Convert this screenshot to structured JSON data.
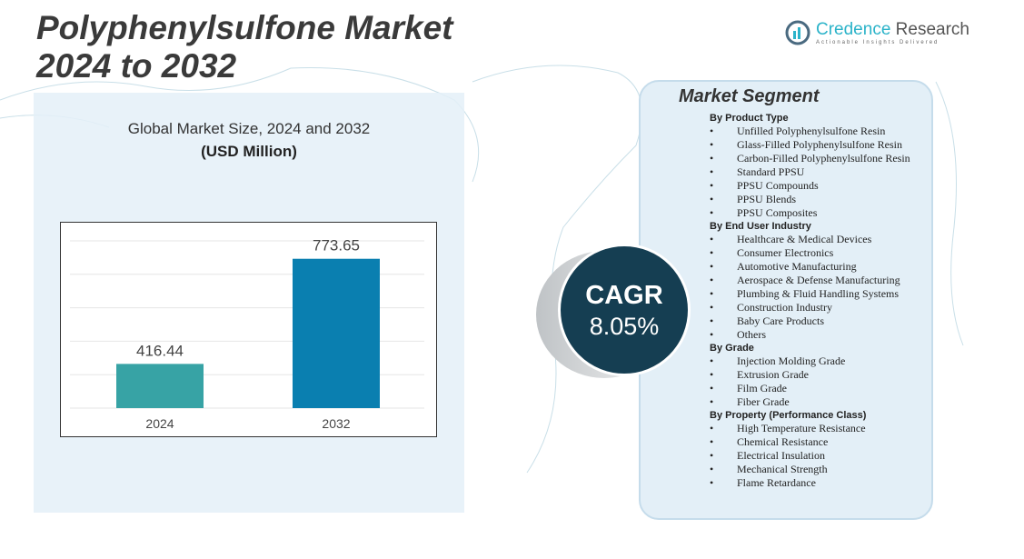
{
  "title_line1": "Polyphenylsulfone Market",
  "title_line2": "2024 to 2032",
  "logo": {
    "name": "Credence",
    "name2": "Research",
    "tagline": "Actionable Insights Delivered"
  },
  "chart_data": {
    "type": "bar",
    "title": "Global Market Size, 2024 and 2032",
    "unit": "(USD Million)",
    "categories": [
      "2024",
      "2032"
    ],
    "values": [
      416.44,
      773.65
    ],
    "data_labels": [
      "416.44",
      "773.65"
    ],
    "colors": [
      "#37a3a5",
      "#0a7fb0"
    ],
    "grid": true
  },
  "cagr": {
    "label": "CAGR",
    "value": "8.05%"
  },
  "segment": {
    "heading": "Market Segment",
    "groups": [
      {
        "title": "By Product Type",
        "items": [
          "Unfilled Polyphenylsulfone Resin",
          "Glass-Filled Polyphenylsulfone Resin",
          "Carbon-Filled Polyphenylsulfone Resin",
          "Standard PPSU",
          "PPSU Compounds",
          "PPSU Blends",
          "PPSU Composites"
        ]
      },
      {
        "title": "By End User Industry",
        "items": [
          "Healthcare & Medical Devices",
          "Consumer Electronics",
          "Automotive Manufacturing",
          "Aerospace & Defense Manufacturing",
          "Plumbing & Fluid Handling Systems",
          "Construction Industry",
          "Baby Care Products",
          "Others"
        ]
      },
      {
        "title": "By Grade",
        "items": [
          "Injection Molding Grade",
          "Extrusion Grade",
          "Film Grade",
          "Fiber Grade"
        ]
      },
      {
        "title": "By Property (Performance Class)",
        "items": [
          "High Temperature Resistance",
          "Chemical Resistance",
          "Electrical Insulation",
          "Mechanical Strength",
          "Flame Retardance"
        ]
      }
    ]
  }
}
